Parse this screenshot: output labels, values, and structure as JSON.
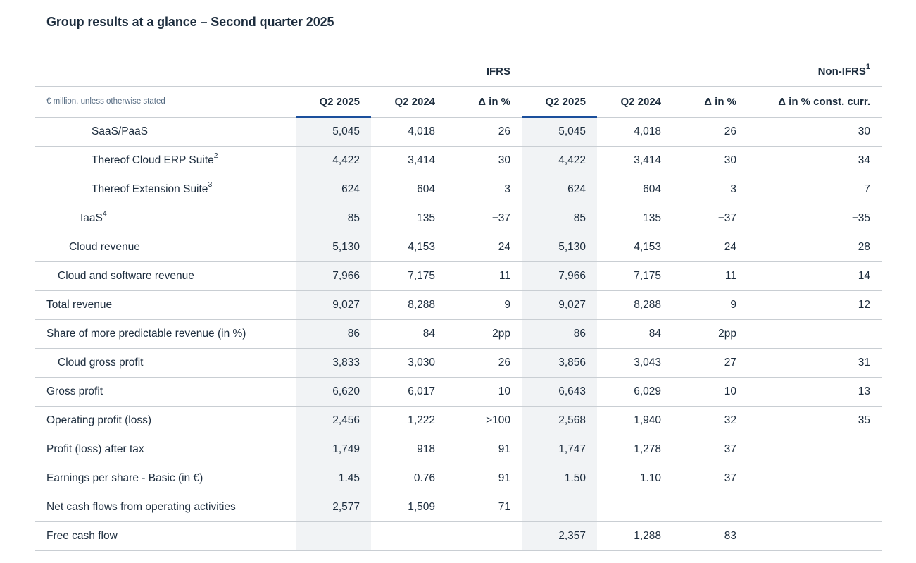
{
  "title": "Group results at a glance – Second quarter 2025",
  "group_headers": {
    "ifrs": "IFRS",
    "non_ifrs": "Non-IFRS",
    "non_ifrs_sup": "1"
  },
  "column_headers": {
    "units": "€ million, unless otherwise stated",
    "ifrs_q2_2025": "Q2 2025",
    "ifrs_q2_2024": "Q2 2024",
    "ifrs_delta": "Δ in %",
    "non_ifrs_q2_2025": "Q2 2025",
    "non_ifrs_q2_2024": "Q2 2024",
    "non_ifrs_delta": "Δ in %",
    "non_ifrs_delta_cc": "Δ in % const. curr."
  },
  "rows": [
    {
      "label": "SaaS/PaaS",
      "sup": "",
      "values": [
        "5,045",
        "4,018",
        "26",
        "5,045",
        "4,018",
        "26",
        "30"
      ]
    },
    {
      "label": "Thereof Cloud ERP Suite",
      "sup": "2",
      "values": [
        "4,422",
        "3,414",
        "30",
        "4,422",
        "3,414",
        "30",
        "34"
      ]
    },
    {
      "label": "Thereof Extension Suite",
      "sup": "3",
      "values": [
        "624",
        "604",
        "3",
        "624",
        "604",
        "3",
        "7"
      ]
    },
    {
      "label": "IaaS",
      "sup": "4",
      "values": [
        "85",
        "135",
        "−37",
        "85",
        "135",
        "−37",
        "−35"
      ]
    },
    {
      "label": "Cloud revenue",
      "sup": "",
      "values": [
        "5,130",
        "4,153",
        "24",
        "5,130",
        "4,153",
        "24",
        "28"
      ]
    },
    {
      "label": "Cloud and software revenue",
      "sup": "",
      "values": [
        "7,966",
        "7,175",
        "11",
        "7,966",
        "7,175",
        "11",
        "14"
      ]
    },
    {
      "label": "Total revenue",
      "sup": "",
      "values": [
        "9,027",
        "8,288",
        "9",
        "9,027",
        "8,288",
        "9",
        "12"
      ]
    },
    {
      "label": "Share of more predictable revenue (in %)",
      "sup": "",
      "values": [
        "86",
        "84",
        "2pp",
        "86",
        "84",
        "2pp",
        ""
      ]
    },
    {
      "label": "Cloud gross profit",
      "sup": "",
      "values": [
        "3,833",
        "3,030",
        "26",
        "3,856",
        "3,043",
        "27",
        "31"
      ]
    },
    {
      "label": "Gross profit",
      "sup": "",
      "values": [
        "6,620",
        "6,017",
        "10",
        "6,643",
        "6,029",
        "10",
        "13"
      ]
    },
    {
      "label": "Operating profit (loss)",
      "sup": "",
      "values": [
        "2,456",
        "1,222",
        ">100",
        "2,568",
        "1,940",
        "32",
        "35"
      ]
    },
    {
      "label": "Profit (loss) after tax",
      "sup": "",
      "values": [
        "1,749",
        "918",
        "91",
        "1,747",
        "1,278",
        "37",
        ""
      ]
    },
    {
      "label": "Earnings per share - Basic (in €)",
      "sup": "",
      "values": [
        "1.45",
        "0.76",
        "91",
        "1.50",
        "1.10",
        "37",
        ""
      ]
    },
    {
      "label": "Net cash flows from operating activities",
      "sup": "",
      "values": [
        "2,577",
        "1,509",
        "71",
        "",
        "",
        "",
        ""
      ]
    },
    {
      "label": "Free cash flow",
      "sup": "",
      "values": [
        "",
        "",
        "",
        "2,357",
        "1,288",
        "83",
        ""
      ]
    }
  ]
}
